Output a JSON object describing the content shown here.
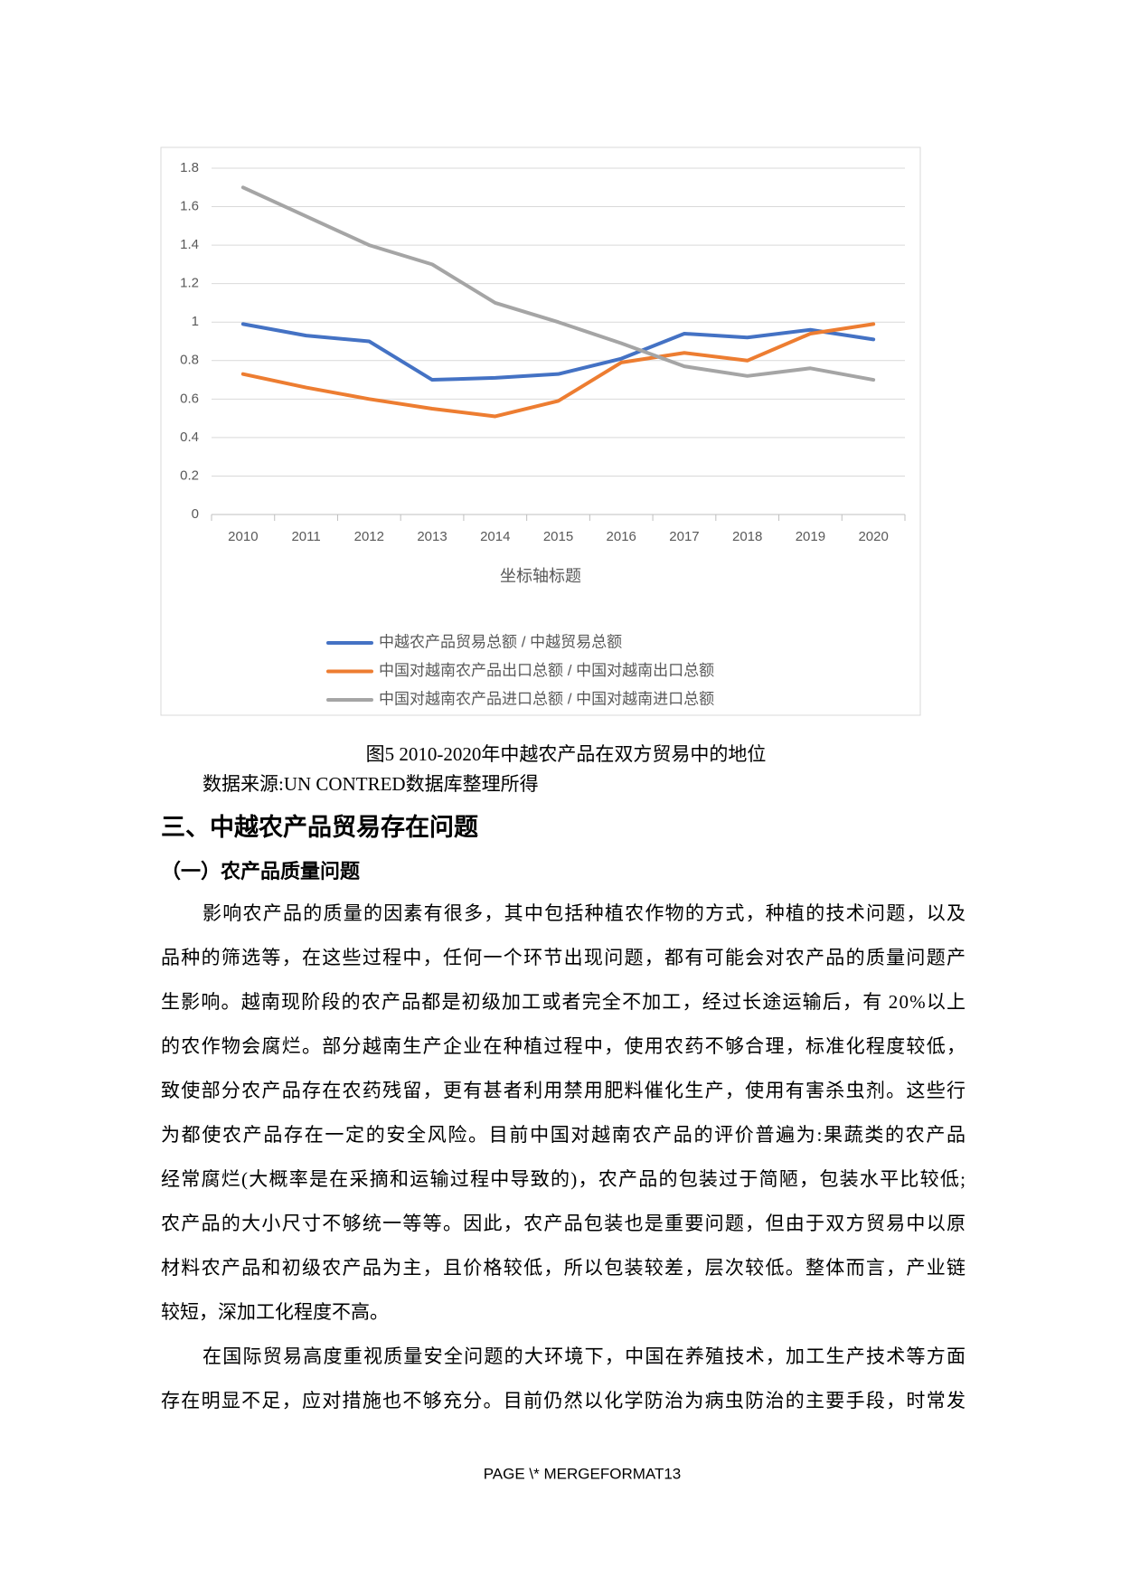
{
  "chart_data": {
    "type": "line",
    "x_label": "坐标轴标题",
    "categories": [
      "2010",
      "2011",
      "2012",
      "2013",
      "2014",
      "2015",
      "2016",
      "2017",
      "2018",
      "2019",
      "2020"
    ],
    "series": [
      {
        "name": "中越农产品贸易总额 / 中越贸易总额",
        "color": "#4472c4",
        "values": [
          0.99,
          0.93,
          0.9,
          0.7,
          0.71,
          0.73,
          0.81,
          0.94,
          0.92,
          0.96,
          0.91
        ]
      },
      {
        "name": "中国对越南农产品出口总额 / 中国对越南出口总额",
        "color": "#ed7d31",
        "values": [
          0.73,
          0.66,
          0.6,
          0.55,
          0.51,
          0.59,
          0.79,
          0.84,
          0.8,
          0.94,
          0.99
        ]
      },
      {
        "name": "中国对越南农产品进口总额 / 中国对越南进口总额",
        "color": "#a5a5a5",
        "values": [
          1.7,
          1.55,
          1.4,
          1.3,
          1.1,
          1.0,
          0.89,
          0.77,
          0.72,
          0.76,
          0.7
        ]
      }
    ],
    "ylim": [
      0,
      1.8
    ],
    "yticks": [
      0,
      0.2,
      0.4,
      0.6,
      0.8,
      1,
      1.2,
      1.4,
      1.6,
      1.8
    ],
    "grid": true,
    "legend": "bottom"
  },
  "caption": "图5 2010-2020年中越农产品在双方贸易中的地位",
  "source": "数据来源:UN CONTRED数据库整理所得",
  "heading": "三、中越农产品贸易存在问题",
  "subheading": "（一）农产品质量问题",
  "paragraphs": [
    {
      "lines": [
        "影响农产品的质量的因素有很多，其中包括种植农作物的方式，种植的技术问题，以及",
        "品种的筛选等，在这些过程中，任何一个环节出现问题，都有可能会对农产品的质量问题产",
        "生影响。越南现阶段的农产品都是初级加工或者完全不加工，经过长途运输后，有 20%以上",
        "的农作物会腐烂。部分越南生产企业在种植过程中，使用农药不够合理，标准化程度较低，",
        "致使部分农产品存在农药残留，更有甚者利用禁用肥料催化生产，使用有害杀虫剂。这些行",
        "为都使农产品存在一定的安全风险。目前中国对越南农产品的评价普遍为:果蔬类的农产品",
        "经常腐烂(大概率是在采摘和运输过程中导致的)，农产品的包装过于简陋，包装水平比较低;",
        "农产品的大小尺寸不够统一等等。因此，农产品包装也是重要问题，但由于双方贸易中以原",
        "材料农产品和初级农产品为主，且价格较低，所以包装较差，层次较低。整体而言，产业链",
        "较短，深加工化程度不高。"
      ]
    },
    {
      "lines": [
        "在国际贸易高度重视质量安全问题的大环境下，中国在养殖技术，加工生产技术等方面",
        "存在明显不足，应对措施也不够充分。目前仍然以化学防治为病虫防治的主要手段，时常发"
      ]
    }
  ],
  "footer": "PAGE   \\* MERGEFORMAT13"
}
